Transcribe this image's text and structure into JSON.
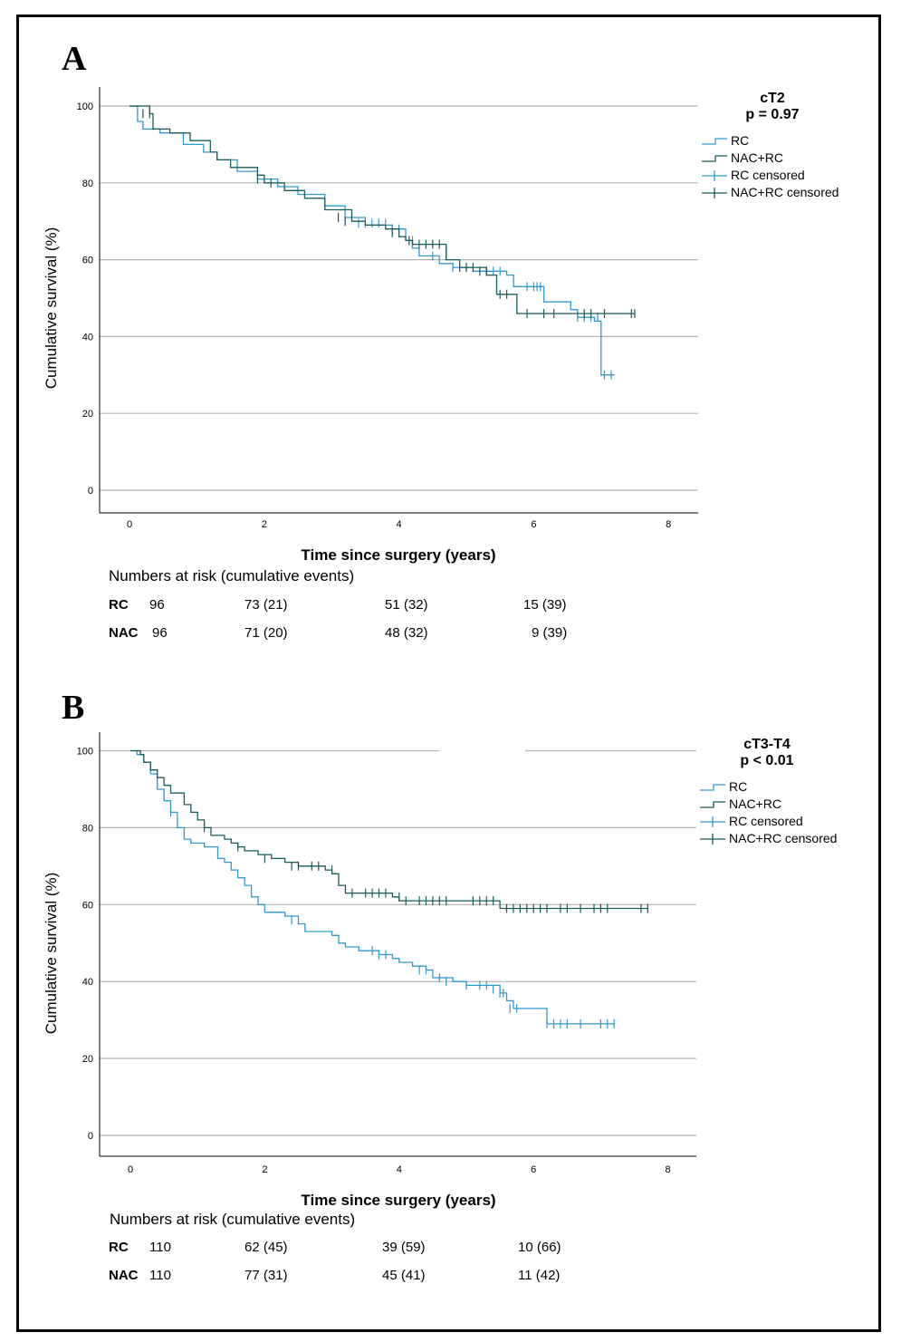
{
  "panels": [
    {
      "letter": "A",
      "stage_label": "cT2",
      "p_value": "p = 0.97",
      "ylabel": "Cumulative survival (%)",
      "xlabel": "Time since surgery (years)",
      "legend": [
        "RC",
        "NAC+RC",
        "RC censored",
        "NAC+RC censored"
      ],
      "risk_title": "Numbers at risk (cumulative events)",
      "risk_rows": [
        {
          "group": "RC",
          "values": [
            "96",
            "73 (21)",
            "51 (32)",
            "15 (39)"
          ]
        },
        {
          "group": "NAC",
          "values": [
            "96",
            "71 (20)",
            "48 (32)",
            "9 (39)"
          ]
        }
      ]
    },
    {
      "letter": "B",
      "stage_label": "cT3-T4",
      "p_value": "p < 0.01",
      "ylabel": "Cumulative survival (%)",
      "xlabel": "Time since surgery (years)",
      "legend": [
        "RC",
        "NAC+RC",
        "RC censored",
        "NAC+RC censored"
      ],
      "risk_title": "Numbers at risk (cumulative events)",
      "risk_rows": [
        {
          "group": "RC",
          "values": [
            "110",
            "62 (45)",
            "39 (59)",
            "10 (66)"
          ]
        },
        {
          "group": "NAC",
          "values": [
            "110",
            "77 (31)",
            "45 (41)",
            "11 (42)"
          ]
        }
      ]
    }
  ],
  "colors": {
    "rc": "#2E9AD0",
    "nac": "#1A5C5C",
    "grid": "#B3B3B3",
    "axis": "#000000"
  },
  "chart_data": [
    {
      "type": "line",
      "title": "cT2",
      "xlabel": "Time since surgery (years)",
      "ylabel": "Cumulative survival (%)",
      "xlim": [
        -0.4,
        8.5
      ],
      "ylim": [
        -6,
        100
      ],
      "xticks": [
        0,
        2,
        4,
        6,
        8
      ],
      "yticks": [
        0,
        20,
        40,
        60,
        80,
        100
      ],
      "grid": "horizontal",
      "legend_position": "top-right",
      "series": [
        {
          "name": "RC",
          "color": "#2E9AD0",
          "steps": [
            [
              0,
              100
            ],
            [
              0.12,
              96
            ],
            [
              0.2,
              94
            ],
            [
              0.45,
              93
            ],
            [
              0.8,
              90
            ],
            [
              1.1,
              88
            ],
            [
              1.3,
              86
            ],
            [
              1.6,
              83
            ],
            [
              1.9,
              81
            ],
            [
              2.2,
              79
            ],
            [
              2.5,
              77
            ],
            [
              2.9,
              74
            ],
            [
              3.2,
              71
            ],
            [
              3.5,
              69
            ],
            [
              3.9,
              68
            ],
            [
              4.1,
              65
            ],
            [
              4.2,
              63
            ],
            [
              4.3,
              61
            ],
            [
              4.6,
              59
            ],
            [
              4.8,
              58
            ],
            [
              5.1,
              57
            ],
            [
              5.6,
              56
            ],
            [
              5.7,
              53
            ],
            [
              6.15,
              49
            ],
            [
              6.55,
              47
            ],
            [
              6.65,
              45
            ],
            [
              6.9,
              44
            ],
            [
              7.0,
              30
            ],
            [
              7.2,
              30
            ]
          ],
          "censored": [
            [
              3.2,
              70
            ],
            [
              3.4,
              69.5
            ],
            [
              3.5,
              69.5
            ],
            [
              3.6,
              69.5
            ],
            [
              3.7,
              69.5
            ],
            [
              3.8,
              69.5
            ],
            [
              3.9,
              68
            ],
            [
              4.0,
              68
            ],
            [
              4.2,
              65
            ],
            [
              4.5,
              61
            ],
            [
              4.8,
              58
            ],
            [
              5.0,
              58
            ],
            [
              5.2,
              57
            ],
            [
              5.3,
              57
            ],
            [
              5.4,
              57
            ],
            [
              5.5,
              57
            ],
            [
              5.9,
              53
            ],
            [
              6.0,
              53
            ],
            [
              6.05,
              53
            ],
            [
              6.1,
              53
            ],
            [
              6.65,
              45
            ],
            [
              6.75,
              45
            ],
            [
              6.85,
              45
            ],
            [
              6.95,
              45
            ],
            [
              7.05,
              30
            ],
            [
              7.15,
              30
            ]
          ]
        },
        {
          "name": "NAC+RC",
          "color": "#1A5C5C",
          "steps": [
            [
              0,
              100
            ],
            [
              0.3,
              98
            ],
            [
              0.35,
              94
            ],
            [
              0.6,
              93
            ],
            [
              0.9,
              91
            ],
            [
              1.2,
              88
            ],
            [
              1.3,
              86
            ],
            [
              1.5,
              84
            ],
            [
              1.9,
              82
            ],
            [
              2.0,
              80
            ],
            [
              2.3,
              78
            ],
            [
              2.6,
              76
            ],
            [
              2.9,
              73
            ],
            [
              3.3,
              70
            ],
            [
              3.5,
              69
            ],
            [
              3.8,
              68
            ],
            [
              4.0,
              66
            ],
            [
              4.1,
              65
            ],
            [
              4.2,
              64
            ],
            [
              4.7,
              60
            ],
            [
              4.9,
              58
            ],
            [
              5.3,
              56
            ],
            [
              5.45,
              51
            ],
            [
              5.6,
              51
            ],
            [
              5.75,
              46
            ],
            [
              7.5,
              46
            ]
          ],
          "censored": [
            [
              0.2,
              98
            ],
            [
              0.3,
              98
            ],
            [
              1.9,
              81
            ],
            [
              2.1,
              80
            ],
            [
              3.1,
              71
            ],
            [
              3.2,
              70
            ],
            [
              3.9,
              67
            ],
            [
              4.15,
              65
            ],
            [
              4.3,
              64
            ],
            [
              4.4,
              64
            ],
            [
              4.5,
              64
            ],
            [
              4.6,
              64
            ],
            [
              4.7,
              62
            ],
            [
              4.9,
              58
            ],
            [
              5.0,
              58
            ],
            [
              5.1,
              58
            ],
            [
              5.2,
              57
            ],
            [
              5.3,
              57
            ],
            [
              5.5,
              51
            ],
            [
              5.6,
              51
            ],
            [
              5.9,
              46
            ],
            [
              6.15,
              46
            ],
            [
              6.3,
              46
            ],
            [
              6.75,
              46
            ],
            [
              6.85,
              46
            ],
            [
              7.05,
              46
            ],
            [
              7.45,
              46
            ],
            [
              7.5,
              46
            ]
          ]
        }
      ]
    },
    {
      "type": "line",
      "title": "cT3-T4",
      "xlabel": "Time since surgery (years)",
      "ylabel": "Cumulative survival (%)",
      "xlim": [
        -0.4,
        8.5
      ],
      "ylim": [
        -6,
        100
      ],
      "xticks": [
        0,
        2,
        4,
        6,
        8
      ],
      "yticks": [
        0,
        20,
        40,
        60,
        80,
        100
      ],
      "grid": "horizontal",
      "legend_position": "top-right",
      "series": [
        {
          "name": "RC",
          "color": "#2E9AD0",
          "steps": [
            [
              0,
              100
            ],
            [
              0.1,
              99
            ],
            [
              0.2,
              97
            ],
            [
              0.3,
              94
            ],
            [
              0.4,
              90
            ],
            [
              0.5,
              87
            ],
            [
              0.6,
              84
            ],
            [
              0.7,
              80
            ],
            [
              0.8,
              77
            ],
            [
              0.9,
              76
            ],
            [
              1.1,
              75
            ],
            [
              1.3,
              72
            ],
            [
              1.4,
              71
            ],
            [
              1.5,
              69
            ],
            [
              1.6,
              67
            ],
            [
              1.7,
              65
            ],
            [
              1.8,
              62
            ],
            [
              1.9,
              60
            ],
            [
              2.0,
              58
            ],
            [
              2.3,
              57
            ],
            [
              2.5,
              55
            ],
            [
              2.6,
              53
            ],
            [
              3.0,
              52
            ],
            [
              3.1,
              50
            ],
            [
              3.2,
              49
            ],
            [
              3.4,
              48
            ],
            [
              3.7,
              47
            ],
            [
              3.9,
              46
            ],
            [
              4.0,
              45
            ],
            [
              4.2,
              44
            ],
            [
              4.4,
              43
            ],
            [
              4.5,
              41
            ],
            [
              4.8,
              40
            ],
            [
              5.0,
              39
            ],
            [
              5.5,
              37
            ],
            [
              5.6,
              35
            ],
            [
              5.7,
              33
            ],
            [
              6.1,
              33
            ],
            [
              6.2,
              29
            ],
            [
              7.2,
              29
            ]
          ],
          "censored": [
            [
              0.5,
              88
            ],
            [
              0.6,
              84
            ],
            [
              2.4,
              56
            ],
            [
              3.6,
              48
            ],
            [
              3.7,
              47
            ],
            [
              3.8,
              47
            ],
            [
              4.3,
              43
            ],
            [
              4.4,
              43
            ],
            [
              4.6,
              41
            ],
            [
              4.7,
              40
            ],
            [
              5.0,
              39
            ],
            [
              5.2,
              39
            ],
            [
              5.3,
              39
            ],
            [
              5.4,
              38
            ],
            [
              5.5,
              37
            ],
            [
              5.55,
              37
            ],
            [
              5.65,
              33
            ],
            [
              5.75,
              33
            ],
            [
              6.2,
              29
            ],
            [
              6.3,
              29
            ],
            [
              6.4,
              29
            ],
            [
              6.5,
              29
            ],
            [
              6.7,
              29
            ],
            [
              7.0,
              29
            ],
            [
              7.1,
              29
            ],
            [
              7.2,
              29
            ]
          ]
        },
        {
          "name": "NAC+RC",
          "color": "#1A5C5C",
          "steps": [
            [
              0,
              100
            ],
            [
              0.15,
              99
            ],
            [
              0.2,
              97
            ],
            [
              0.3,
              95
            ],
            [
              0.4,
              93
            ],
            [
              0.5,
              91
            ],
            [
              0.6,
              89
            ],
            [
              0.8,
              86
            ],
            [
              0.9,
              84
            ],
            [
              1.0,
              82
            ],
            [
              1.1,
              80
            ],
            [
              1.2,
              78
            ],
            [
              1.4,
              77
            ],
            [
              1.5,
              76
            ],
            [
              1.6,
              75
            ],
            [
              1.7,
              74
            ],
            [
              1.9,
              73
            ],
            [
              2.1,
              72
            ],
            [
              2.3,
              71
            ],
            [
              2.5,
              70
            ],
            [
              2.9,
              69
            ],
            [
              3.0,
              68
            ],
            [
              3.1,
              65
            ],
            [
              3.2,
              63
            ],
            [
              3.9,
              62
            ],
            [
              4.0,
              61
            ],
            [
              5.5,
              59
            ],
            [
              7.7,
              59
            ]
          ],
          "censored": [
            [
              1.1,
              80
            ],
            [
              1.6,
              75
            ],
            [
              2.0,
              72
            ],
            [
              2.4,
              70
            ],
            [
              2.5,
              70
            ],
            [
              2.7,
              70
            ],
            [
              2.8,
              70
            ],
            [
              3.0,
              69
            ],
            [
              3.3,
              63
            ],
            [
              3.5,
              63
            ],
            [
              3.6,
              63
            ],
            [
              3.7,
              63
            ],
            [
              3.8,
              63
            ],
            [
              4.0,
              62
            ],
            [
              4.1,
              61
            ],
            [
              4.3,
              61
            ],
            [
              4.4,
              61
            ],
            [
              4.5,
              61
            ],
            [
              4.6,
              61
            ],
            [
              4.7,
              61
            ],
            [
              5.1,
              61
            ],
            [
              5.2,
              61
            ],
            [
              5.3,
              61
            ],
            [
              5.4,
              61
            ],
            [
              5.6,
              59
            ],
            [
              5.7,
              59
            ],
            [
              5.8,
              59
            ],
            [
              5.9,
              59
            ],
            [
              6.0,
              59
            ],
            [
              6.1,
              59
            ],
            [
              6.2,
              59
            ],
            [
              6.4,
              59
            ],
            [
              6.5,
              59
            ],
            [
              6.7,
              59
            ],
            [
              6.9,
              59
            ],
            [
              7.0,
              59
            ],
            [
              7.1,
              59
            ],
            [
              7.6,
              59
            ],
            [
              7.7,
              59
            ]
          ]
        }
      ]
    }
  ]
}
